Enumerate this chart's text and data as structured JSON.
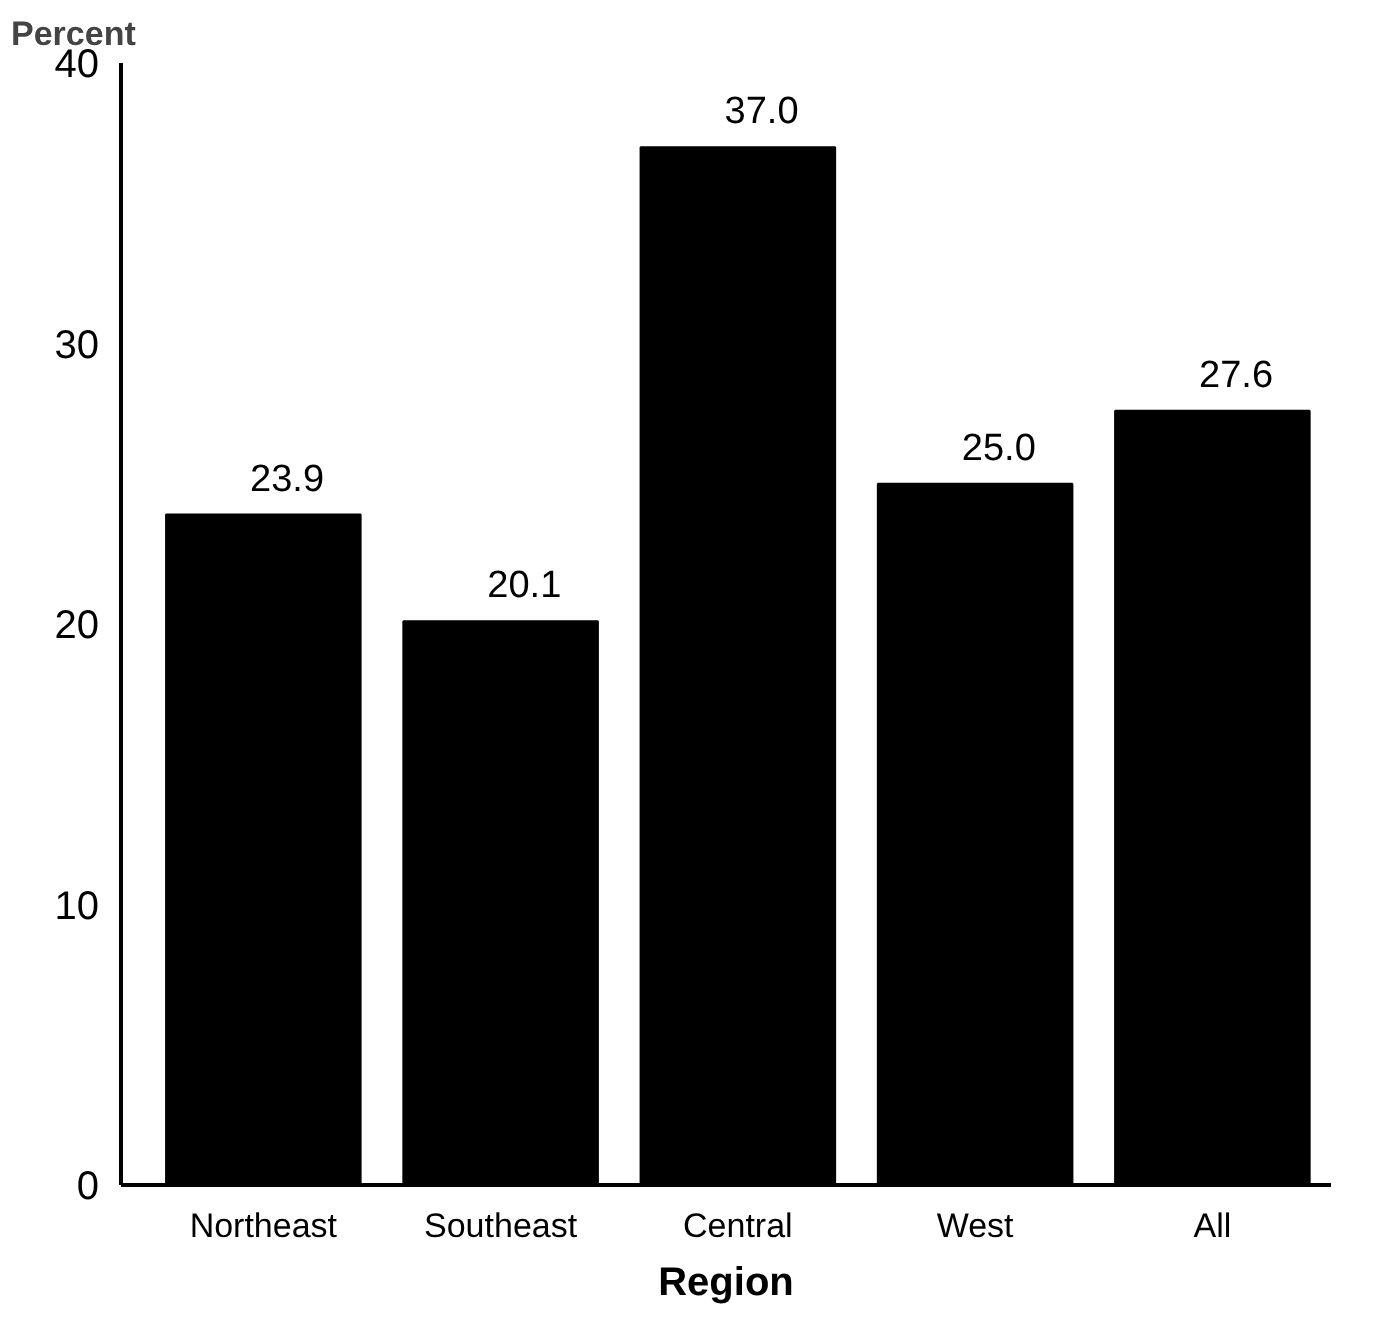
{
  "chart_data": {
    "type": "bar",
    "ylabel": "Percent",
    "xlabel": "Region",
    "categories": [
      "Northeast",
      "Southeast",
      "Central",
      "West",
      "All"
    ],
    "values": [
      23.9,
      20.1,
      37.0,
      25.0,
      27.6
    ],
    "color": "#000000",
    "ylim": [
      0,
      40
    ],
    "yticks": [
      0,
      10,
      20,
      30,
      40
    ],
    "value_labels": [
      "23.9",
      "20.1",
      "37.0",
      "25.0",
      "27.6"
    ],
    "grid": false
  }
}
